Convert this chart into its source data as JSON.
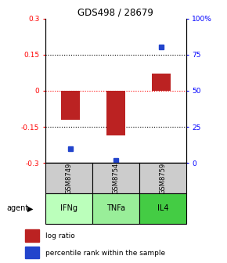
{
  "title": "GDS498 / 28679",
  "samples": [
    "GSM8749",
    "GSM8754",
    "GSM8759"
  ],
  "agents": [
    "IFNg",
    "TNFa",
    "IL4"
  ],
  "log_ratios": [
    -0.12,
    -0.185,
    0.07
  ],
  "percentile_ranks": [
    10,
    2,
    80
  ],
  "ylim_left": [
    -0.3,
    0.3
  ],
  "ylim_right": [
    0,
    100
  ],
  "yticks_left": [
    -0.3,
    -0.15,
    0,
    0.15,
    0.3
  ],
  "yticks_right": [
    0,
    25,
    50,
    75,
    100
  ],
  "ytick_labels_right": [
    "0",
    "25",
    "50",
    "75",
    "100%"
  ],
  "hlines": [
    -0.15,
    0,
    0.15
  ],
  "bar_color": "#bb2222",
  "point_color": "#2244cc",
  "agent_colors": [
    "#bbffbb",
    "#99ee99",
    "#44cc44"
  ],
  "sample_bg": "#cccccc",
  "bar_width": 0.4,
  "title_fontsize": 8.5
}
